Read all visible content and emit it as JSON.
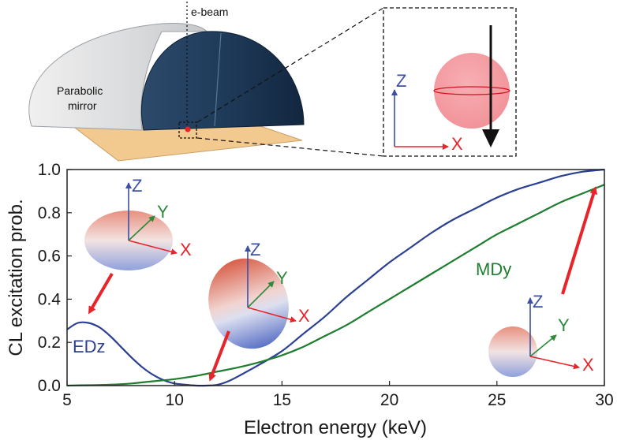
{
  "schematic": {
    "ebeam_label": "e-beam",
    "mirror_label_line1": "Parabolic",
    "mirror_label_line2": "mirror",
    "inset_axis_z": "Z",
    "inset_axis_x": "X"
  },
  "orientation_labels": {
    "z": "Z",
    "y": "Y",
    "x": "X"
  },
  "colors": {
    "edz": "#2b3f93",
    "mdy": "#1e7d2f",
    "arrow": "#e8232a",
    "axis_z": "#3b4fa5",
    "axis_y": "#2d8a3a",
    "axis_x": "#e8232a",
    "mirror_dark": "#1d3a5c",
    "sample": "#f2c98e"
  },
  "chart_data": {
    "type": "line",
    "xlabel": "Electron energy (keV)",
    "ylabel": "CL excitation prob.",
    "xlim": [
      5,
      30
    ],
    "ylim": [
      0,
      1
    ],
    "xticks": [
      "5",
      "10",
      "15",
      "20",
      "25",
      "30"
    ],
    "yticks": [
      "0.0",
      "0.2",
      "0.4",
      "0.6",
      "0.8",
      "1.0"
    ],
    "grid": false,
    "series": [
      {
        "name": "EDz",
        "x": [
          5,
          5.5,
          6,
          6.5,
          7,
          7.5,
          8,
          8.5,
          9,
          9.5,
          10,
          10.5,
          11,
          11.5,
          12,
          12.5,
          13,
          14,
          15,
          16,
          17,
          18,
          19,
          20,
          21,
          22,
          23,
          24,
          25,
          26,
          27,
          28,
          29,
          30
        ],
        "y": [
          0.26,
          0.29,
          0.29,
          0.27,
          0.23,
          0.18,
          0.13,
          0.085,
          0.05,
          0.025,
          0.01,
          0.004,
          0.0,
          0.0,
          0.004,
          0.02,
          0.045,
          0.1,
          0.16,
          0.24,
          0.32,
          0.41,
          0.49,
          0.57,
          0.64,
          0.71,
          0.77,
          0.82,
          0.87,
          0.91,
          0.94,
          0.97,
          0.99,
          1.0
        ]
      },
      {
        "name": "MDy",
        "x": [
          5,
          6,
          7,
          8,
          9,
          10,
          11,
          12,
          13,
          14,
          15,
          16,
          17,
          18,
          19,
          20,
          21,
          22,
          23,
          24,
          25,
          26,
          27,
          28,
          29,
          30
        ],
        "y": [
          0.0,
          0.002,
          0.004,
          0.01,
          0.02,
          0.03,
          0.045,
          0.065,
          0.085,
          0.11,
          0.14,
          0.18,
          0.23,
          0.28,
          0.34,
          0.4,
          0.46,
          0.52,
          0.58,
          0.64,
          0.7,
          0.75,
          0.8,
          0.85,
          0.89,
          0.93
        ]
      }
    ]
  }
}
